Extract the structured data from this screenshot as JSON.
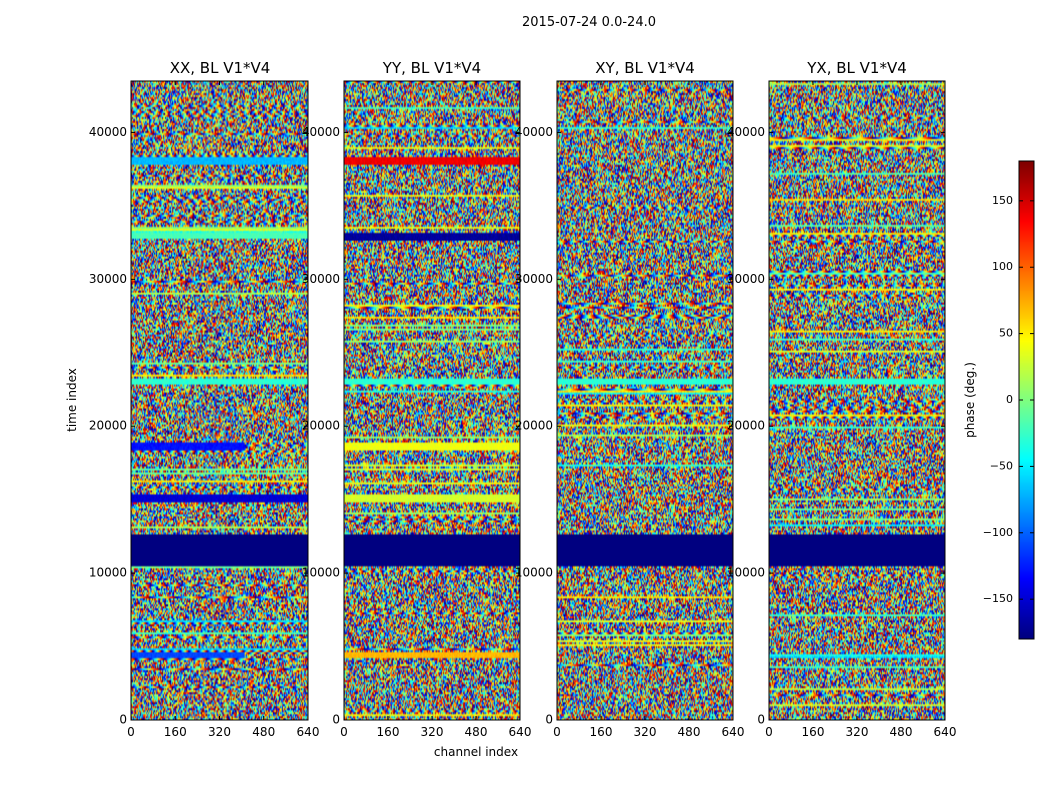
{
  "chart_data": {
    "type": "heatmap",
    "suptitle": "2015-07-24 0.0-24.0",
    "xlabel": "channel index",
    "ylabel": "time index",
    "xlim": [
      0,
      640
    ],
    "ylim": [
      0,
      43500
    ],
    "xticks": [
      0,
      160,
      320,
      480,
      640
    ],
    "yticks": [
      0,
      10000,
      20000,
      30000,
      40000
    ],
    "panels": [
      {
        "title": "XX, BL V1*V4",
        "bands": [
          {
            "y0": 10500,
            "y1": 12700,
            "value": -180,
            "x0": 0,
            "x1": 640
          },
          {
            "y0": 14800,
            "y1": 15300,
            "value": -150,
            "x0": 0,
            "x1": 640
          },
          {
            "y0": 18300,
            "y1": 18900,
            "value": -130,
            "x0": 0,
            "x1": 410
          },
          {
            "y0": 4200,
            "y1": 4600,
            "value": -110,
            "x0": 0,
            "x1": 410
          },
          {
            "y0": 32800,
            "y1": 33200,
            "value": -20,
            "x0": 0,
            "x1": 640
          },
          {
            "y0": 37800,
            "y1": 38300,
            "value": -70,
            "x0": 0,
            "x1": 640
          },
          {
            "y0": 22800,
            "y1": 23300,
            "value": -30,
            "x0": 0,
            "x1": 640
          }
        ]
      },
      {
        "title": "YY, BL V1*V4",
        "bands": [
          {
            "y0": 10500,
            "y1": 12700,
            "value": -180,
            "x0": 0,
            "x1": 640
          },
          {
            "y0": 32600,
            "y1": 33200,
            "value": -170,
            "x0": 0,
            "x1": 640
          },
          {
            "y0": 37800,
            "y1": 38300,
            "value": 140,
            "x0": 0,
            "x1": 640
          },
          {
            "y0": 18300,
            "y1": 18900,
            "value": 40,
            "x0": 0,
            "x1": 640
          },
          {
            "y0": 14800,
            "y1": 15300,
            "value": 30,
            "x0": 0,
            "x1": 640
          },
          {
            "y0": 4200,
            "y1": 4600,
            "value": 70,
            "x0": 0,
            "x1": 640
          },
          {
            "y0": 22800,
            "y1": 23300,
            "value": -30,
            "x0": 0,
            "x1": 640
          }
        ]
      },
      {
        "title": "XY, BL V1*V4",
        "bands": [
          {
            "y0": 10500,
            "y1": 12700,
            "value": -180,
            "x0": 0,
            "x1": 640
          },
          {
            "y0": 22800,
            "y1": 23300,
            "value": -30,
            "x0": 0,
            "x1": 640
          }
        ]
      },
      {
        "title": "YX, BL V1*V4",
        "bands": [
          {
            "y0": 10500,
            "y1": 12700,
            "value": -180,
            "x0": 0,
            "x1": 640
          },
          {
            "y0": 22800,
            "y1": 23300,
            "value": -30,
            "x0": 0,
            "x1": 640
          }
        ]
      }
    ],
    "colorbar": {
      "label": "phase (deg.)",
      "colormap": "jet",
      "vmin": -180,
      "vmax": 180,
      "ticks": [
        -150,
        -100,
        -50,
        0,
        50,
        100,
        150
      ]
    }
  }
}
